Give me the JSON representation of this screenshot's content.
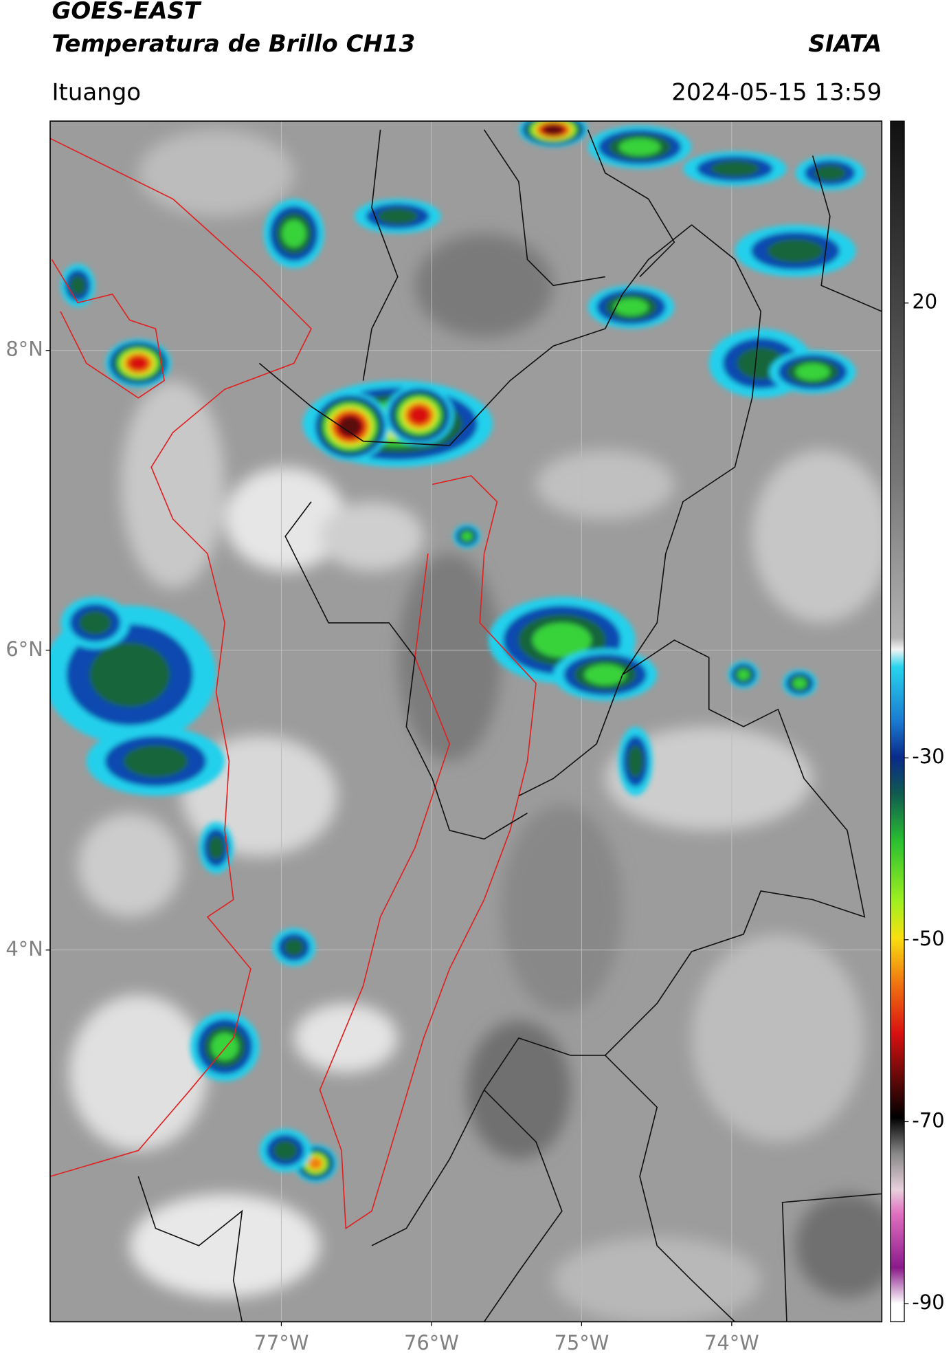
{
  "header": {
    "title": "GOES-EAST",
    "subtitle": "Temperatura de Brillo CH13",
    "source": "SIATA",
    "location": "Ituango",
    "timestamp": "2024-05-15 13:59"
  },
  "map": {
    "xlim": [
      -78.54,
      -73.0
    ],
    "ylim": [
      1.52,
      9.53
    ],
    "xticks": [
      {
        "value": -77,
        "label": "77°W"
      },
      {
        "value": -76,
        "label": "76°W"
      },
      {
        "value": -75,
        "label": "75°W"
      },
      {
        "value": -74,
        "label": "74°W"
      }
    ],
    "yticks": [
      {
        "value": 8,
        "label": "8°N"
      },
      {
        "value": 6,
        "label": "6°N"
      },
      {
        "value": 4,
        "label": "4°N"
      }
    ],
    "grid": true
  },
  "colorbar": {
    "lim": [
      -92,
      40
    ],
    "ticks": [
      20,
      -30,
      -50,
      -70,
      -90
    ]
  }
}
